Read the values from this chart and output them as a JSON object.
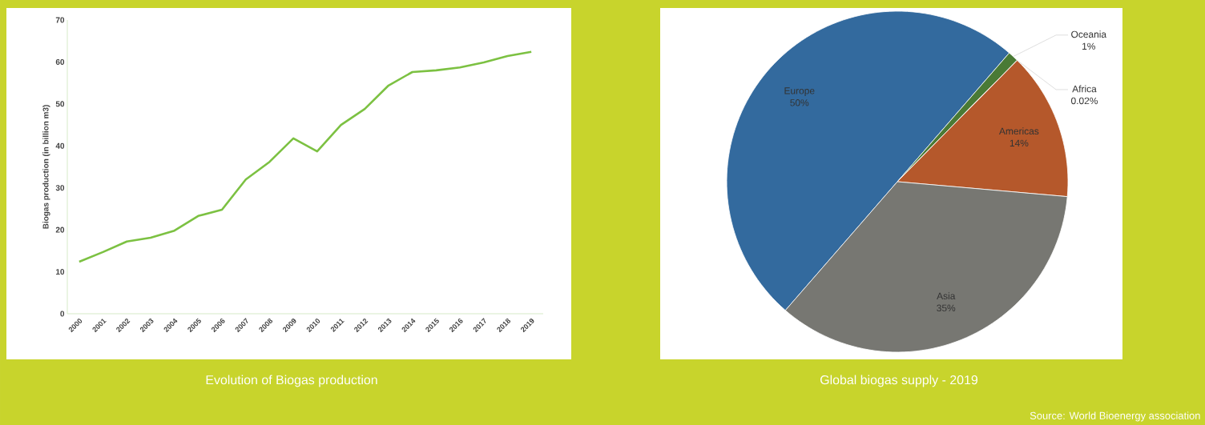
{
  "chart_data": [
    {
      "type": "line",
      "title": "Evolution of Biogas production",
      "ylabel": "Biogas production (in billion m3)",
      "categories": [
        "2000",
        "2001",
        "2002",
        "2003",
        "2004",
        "2005",
        "2006",
        "2007",
        "2008",
        "2009",
        "2010",
        "2011",
        "2012",
        "2013",
        "2014",
        "2015",
        "2016",
        "2017",
        "2018",
        "2019"
      ],
      "values": [
        12.4,
        14.7,
        17.2,
        18.1,
        19.8,
        23.3,
        24.8,
        32,
        36.2,
        41.8,
        38.7,
        45,
        48.8,
        54.4,
        57.6,
        58,
        58.7,
        59.9,
        61.4,
        62.4
      ],
      "color": "#7cc142",
      "ylim": [
        0,
        70
      ],
      "yticks": [
        0,
        10,
        20,
        30,
        40,
        50,
        60,
        70
      ]
    },
    {
      "type": "pie",
      "title": "Global biogas supply - 2019",
      "categories": [
        "Europe",
        "Oceania",
        "Africa",
        "Americas",
        "Asia"
      ],
      "values": [
        50,
        1,
        0.02,
        14,
        35
      ],
      "value_labels": [
        "50%",
        "1%",
        "0.02%",
        "14%",
        "35%"
      ],
      "colors": [
        "#336a9e",
        "#4a7a35",
        "#9e9e9e",
        "#b5582b",
        "#777772"
      ],
      "annotations": [
        "Source: World Bioenergy association"
      ]
    }
  ]
}
